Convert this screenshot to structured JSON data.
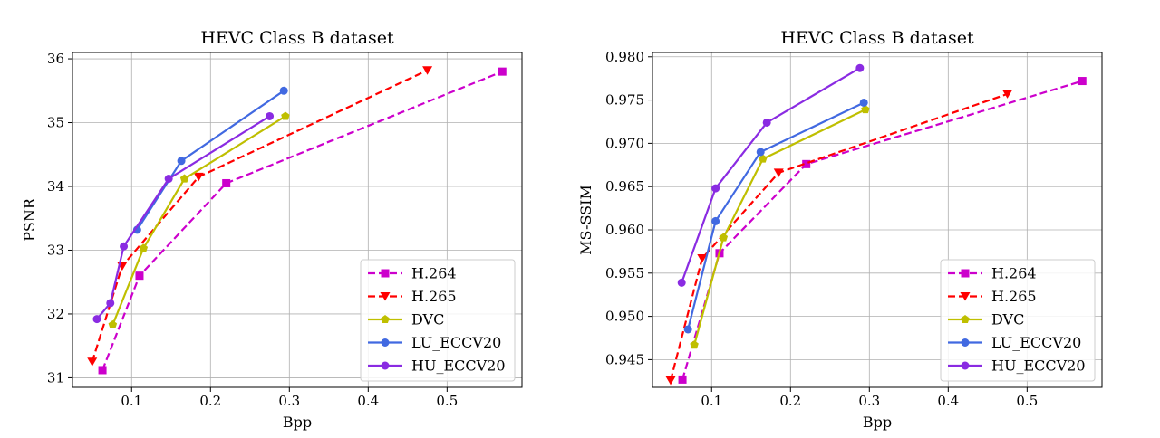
{
  "chart_data": [
    {
      "type": "line",
      "title": "HEVC Class B dataset",
      "xlabel": "Bpp",
      "ylabel": "PSNR",
      "xlim": [
        0.025,
        0.595
      ],
      "ylim": [
        30.85,
        36.1
      ],
      "xticks": [
        0.1,
        0.2,
        0.3,
        0.4,
        0.5
      ],
      "xtick_labels": [
        "0.1",
        "0.2",
        "0.3",
        "0.4",
        "0.5"
      ],
      "yticks": [
        31,
        32,
        33,
        34,
        35,
        36
      ],
      "ytick_labels": [
        "31",
        "32",
        "33",
        "34",
        "35",
        "36"
      ],
      "grid": true,
      "legend_position": "bottom-right",
      "series": [
        {
          "name": "H.264",
          "color": "#cc00cc",
          "dash": "dashed",
          "marker": "square",
          "x": [
            0.063,
            0.11,
            0.22,
            0.57
          ],
          "y": [
            31.12,
            32.6,
            34.05,
            35.8
          ]
        },
        {
          "name": "H.265",
          "color": "#ff0000",
          "dash": "dashed",
          "marker": "triangle-down",
          "x": [
            0.05,
            0.088,
            0.185,
            0.475
          ],
          "y": [
            31.25,
            32.75,
            34.15,
            35.82
          ]
        },
        {
          "name": "DVC",
          "color": "#bfbf00",
          "dash": "solid",
          "marker": "pentagon",
          "x": [
            0.076,
            0.115,
            0.167,
            0.295
          ],
          "y": [
            31.83,
            33.03,
            34.12,
            35.1
          ]
        },
        {
          "name": "LU_ECCV20",
          "color": "#4169e1",
          "dash": "solid",
          "marker": "circle",
          "x": [
            0.107,
            0.163,
            0.293
          ],
          "y": [
            33.32,
            34.4,
            35.5
          ]
        },
        {
          "name": "HU_ECCV20",
          "color": "#8a2be2",
          "dash": "solid",
          "marker": "circle",
          "x": [
            0.056,
            0.073,
            0.09,
            0.147,
            0.275
          ],
          "y": [
            31.92,
            32.17,
            33.06,
            34.12,
            35.1
          ]
        }
      ]
    },
    {
      "type": "line",
      "title": "HEVC Class B dataset",
      "xlabel": "Bpp",
      "ylabel": "MS-SSIM",
      "xlim": [
        0.025,
        0.595
      ],
      "ylim": [
        0.9418,
        0.9805
      ],
      "xticks": [
        0.1,
        0.2,
        0.3,
        0.4,
        0.5
      ],
      "xtick_labels": [
        "0.1",
        "0.2",
        "0.3",
        "0.4",
        "0.5"
      ],
      "yticks": [
        0.945,
        0.95,
        0.955,
        0.96,
        0.965,
        0.97,
        0.975,
        0.98
      ],
      "ytick_labels": [
        "0.945",
        "0.950",
        "0.955",
        "0.960",
        "0.965",
        "0.970",
        "0.975",
        "0.980"
      ],
      "grid": true,
      "legend_position": "bottom-right",
      "series": [
        {
          "name": "H.264",
          "color": "#cc00cc",
          "dash": "dashed",
          "marker": "square",
          "x": [
            0.063,
            0.11,
            0.22,
            0.57
          ],
          "y": [
            0.9427,
            0.9573,
            0.9676,
            0.9772
          ]
        },
        {
          "name": "H.265",
          "color": "#ff0000",
          "dash": "dashed",
          "marker": "triangle-down",
          "x": [
            0.048,
            0.088,
            0.185,
            0.475
          ],
          "y": [
            0.9426,
            0.9567,
            0.9666,
            0.9757
          ]
        },
        {
          "name": "DVC",
          "color": "#bfbf00",
          "dash": "solid",
          "marker": "pentagon",
          "x": [
            0.078,
            0.115,
            0.165,
            0.295
          ],
          "y": [
            0.9467,
            0.9591,
            0.9682,
            0.9739
          ]
        },
        {
          "name": "LU_ECCV20",
          "color": "#4169e1",
          "dash": "solid",
          "marker": "circle",
          "x": [
            0.07,
            0.105,
            0.162,
            0.293
          ],
          "y": [
            0.9485,
            0.961,
            0.969,
            0.9747
          ]
        },
        {
          "name": "HU_ECCV20",
          "color": "#8a2be2",
          "dash": "solid",
          "marker": "circle",
          "x": [
            0.062,
            0.105,
            0.17,
            0.288
          ],
          "y": [
            0.9539,
            0.9648,
            0.9724,
            0.9787
          ]
        }
      ]
    }
  ]
}
